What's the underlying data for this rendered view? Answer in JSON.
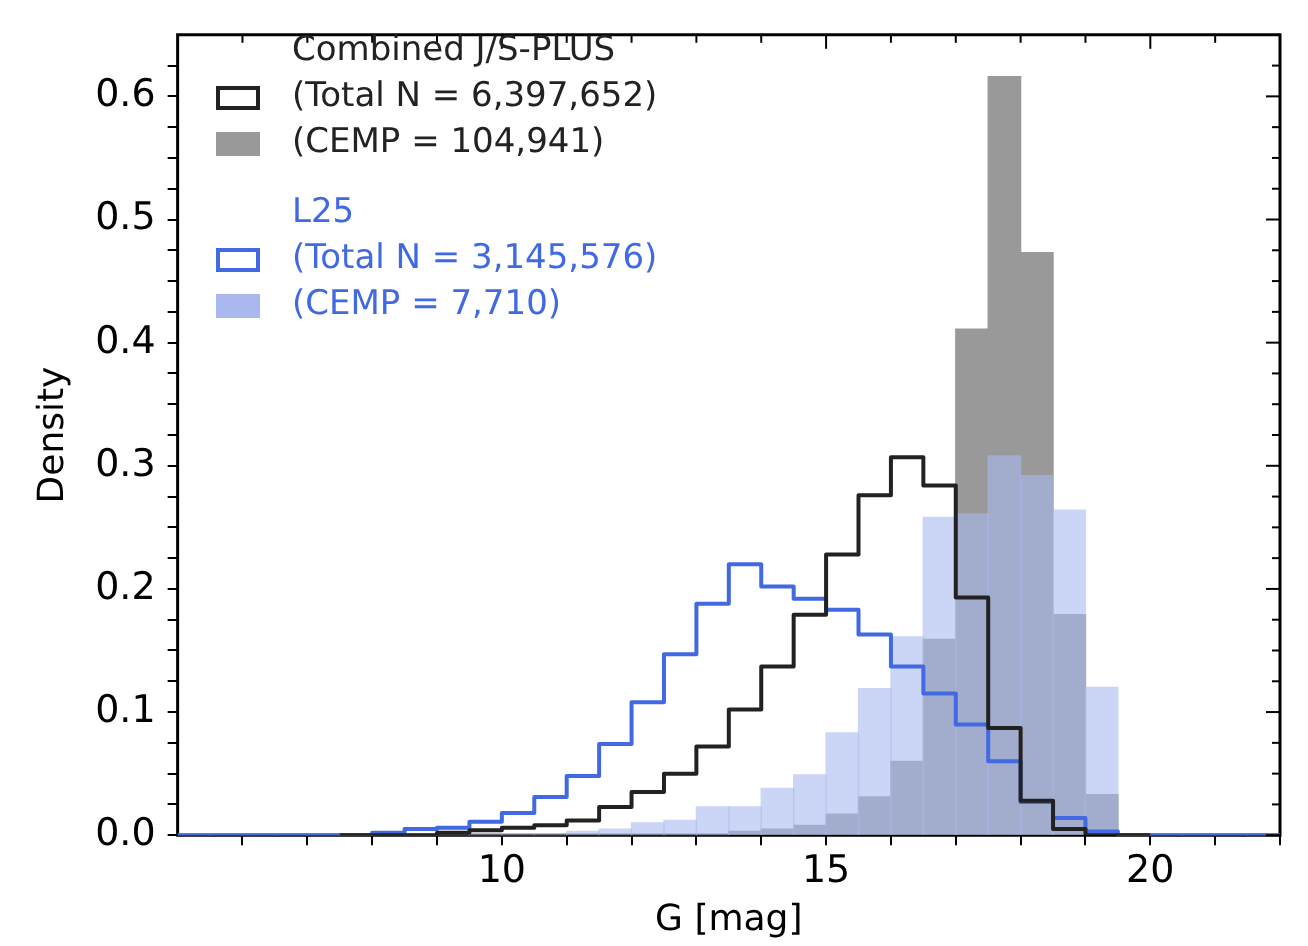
{
  "chart_data": {
    "type": "histogram",
    "xlabel": "G [mag]",
    "ylabel": "Density",
    "bins": [
      5,
      5.5,
      6,
      6.5,
      7,
      7.5,
      8,
      8.5,
      9,
      9.5,
      10,
      10.5,
      11,
      11.5,
      12,
      12.5,
      13,
      13.5,
      14,
      14.5,
      15,
      15.5,
      16,
      16.5,
      17,
      17.5,
      18,
      18.5,
      19,
      19.5,
      20,
      20.5,
      21,
      21.5,
      22
    ],
    "series": [
      {
        "type": "step",
        "name": "(Total N = 6,397,652)",
        "color": "#222222",
        "x": [
          7.5,
          8,
          8.5,
          9,
          9.5,
          10,
          10.5,
          11,
          11.5,
          12,
          12.5,
          13,
          13.5,
          14,
          14.5,
          15,
          15.5,
          16,
          16.5,
          17,
          17.5,
          18,
          18.5,
          19,
          19.5,
          20
        ],
        "values": [
          0,
          0,
          0,
          0,
          0.002,
          0.004,
          0.006,
          0.008,
          0.012,
          0.023,
          0.035,
          0.05,
          0.072,
          0.102,
          0.137,
          0.179,
          0.228,
          0.276,
          0.307,
          0.284,
          0.193,
          0.087,
          0.028,
          0.005,
          0,
          0
        ]
      },
      {
        "name": "(CEMP = 104,941)",
        "color": "#999999",
        "values": [
          0,
          0,
          0,
          0,
          0,
          0,
          0,
          0,
          0,
          0,
          0,
          0,
          0,
          0,
          0,
          0,
          0,
          0.003,
          0.005,
          0.008,
          0.017,
          0.031,
          0.06,
          0.159,
          0.411,
          0.616,
          0.473,
          0.179,
          0.033,
          0,
          0,
          0,
          0,
          0
        ]
      },
      {
        "type": "step",
        "name": "(Total N = 3,145,576)",
        "color": "#4169e1",
        "x": [
          5,
          5.5,
          6,
          6.5,
          7,
          7.5,
          8,
          8.5,
          9,
          9.5,
          10,
          10.5,
          11,
          11.5,
          12,
          12.5,
          13,
          13.5,
          14,
          14.5,
          15,
          15.5,
          16,
          16.5,
          17,
          17.5,
          18,
          18.5,
          19,
          19.5,
          20,
          20.5,
          21,
          21.5,
          22
        ],
        "values": [
          0,
          0,
          0,
          0,
          0,
          0,
          0,
          0.002,
          0.005,
          0.006,
          0.011,
          0.018,
          0.031,
          0.048,
          0.074,
          0.108,
          0.147,
          0.188,
          0.22,
          0.202,
          0.192,
          0.183,
          0.163,
          0.137,
          0.115,
          0.09,
          0.06,
          0.027,
          0.014,
          0.003,
          0,
          0,
          0,
          0,
          0
        ]
      },
      {
        "name": "(CEMP = 7,710)",
        "color": "#a9b9ef",
        "values": [
          0,
          0,
          0,
          0,
          0,
          0,
          0,
          0,
          0,
          0,
          0,
          0,
          0.003,
          0.005,
          0.01,
          0.012,
          0.023,
          0.023,
          0.038,
          0.049,
          0.083,
          0.119,
          0.161,
          0.258,
          0.261,
          0.308,
          0.292,
          0.264,
          0.12,
          0,
          0,
          0,
          0,
          0
        ]
      }
    ],
    "annotations": [
      "Combined J/S-PLUS",
      "L25"
    ],
    "legend": "top left",
    "xlim": [
      5,
      22
    ],
    "xticks": [
      {
        "value": 6,
        "label": null
      },
      {
        "value": 7,
        "label": null
      },
      {
        "value": 8,
        "label": null
      },
      {
        "value": 9,
        "label": null
      },
      10,
      {
        "value": 11,
        "label": null
      },
      {
        "value": 12,
        "label": null
      },
      {
        "value": 13,
        "label": null
      },
      {
        "value": 14,
        "label": null
      },
      15,
      {
        "value": 16,
        "label": null
      },
      {
        "value": 17,
        "label": null
      },
      {
        "value": 18,
        "label": null
      },
      {
        "value": 19,
        "label": null
      },
      20,
      {
        "value": 21,
        "label": null
      },
      {
        "value": 22,
        "label": null
      }
    ],
    "ylim": [
      0,
      0.65
    ],
    "yticks": [
      {
        "value": 0,
        "label": "0.0"
      },
      {
        "value": 0.025,
        "label": null
      },
      {
        "value": 0.05,
        "label": null
      },
      {
        "value": 0.075,
        "label": null
      },
      0.1,
      {
        "value": 0.125,
        "label": null
      },
      {
        "value": 0.15,
        "label": null
      },
      {
        "value": 0.175,
        "label": null
      },
      0.2,
      {
        "value": 0.225,
        "label": null
      },
      {
        "value": 0.25,
        "label": null
      },
      {
        "value": 0.275,
        "label": null
      },
      0.3,
      {
        "value": 0.325,
        "label": null
      },
      {
        "value": 0.35,
        "label": null
      },
      {
        "value": 0.375,
        "label": null
      },
      0.4,
      {
        "value": 0.425,
        "label": null
      },
      {
        "value": 0.45,
        "label": null
      },
      {
        "value": 0.475,
        "label": null
      },
      0.5,
      {
        "value": 0.525,
        "label": null
      },
      {
        "value": 0.55,
        "label": null
      },
      {
        "value": 0.575,
        "label": null
      },
      0.6,
      {
        "value": 0.625,
        "label": null
      }
    ]
  }
}
